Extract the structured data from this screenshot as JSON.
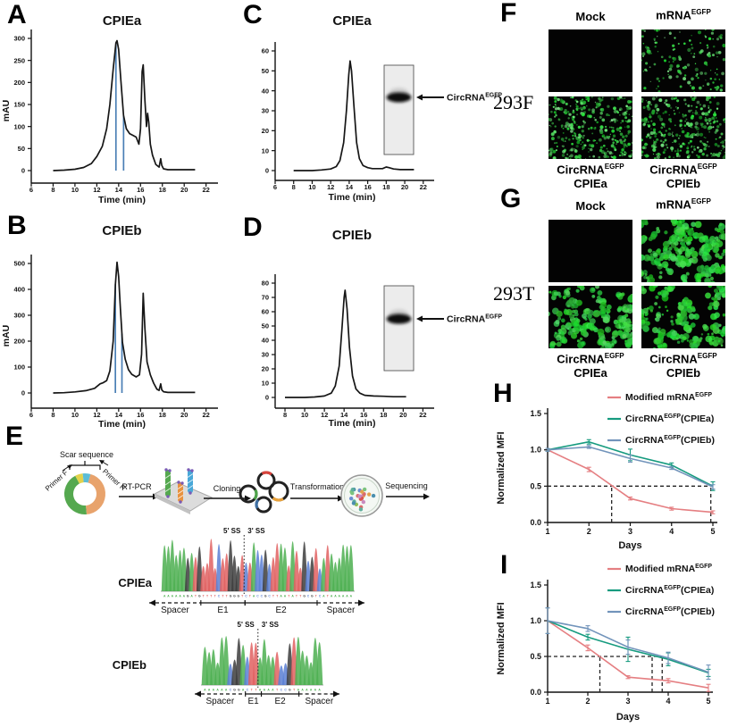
{
  "figure": {
    "letters": {
      "A": "A",
      "B": "B",
      "C": "C",
      "D": "D",
      "E": "E",
      "F": "F",
      "G": "G",
      "H": "H",
      "I": "I"
    }
  },
  "chart_data": [
    {
      "id": "A",
      "type": "line",
      "title": "CPIEa",
      "xlabel": "Time (min)",
      "ylabel": "mAU",
      "xlim": [
        6,
        22.6
      ],
      "xticks": [
        6,
        8,
        10,
        12,
        14,
        16,
        18,
        20,
        22
      ],
      "yticks": [
        0,
        50,
        100,
        150,
        200,
        250,
        300
      ],
      "line_color": "#161616",
      "marker_color": "#4a7fb5",
      "fraction_lines": [
        13.75,
        14.45
      ],
      "points": [
        [
          8,
          0
        ],
        [
          9,
          1
        ],
        [
          10,
          3
        ],
        [
          10.8,
          7
        ],
        [
          11.5,
          16
        ],
        [
          12,
          32
        ],
        [
          12.5,
          55
        ],
        [
          12.9,
          95
        ],
        [
          13.2,
          150
        ],
        [
          13.5,
          230
        ],
        [
          13.75,
          290
        ],
        [
          13.85,
          295
        ],
        [
          14,
          275
        ],
        [
          14.2,
          205
        ],
        [
          14.45,
          125
        ],
        [
          14.7,
          95
        ],
        [
          15,
          84
        ],
        [
          15.3,
          80
        ],
        [
          15.6,
          76
        ],
        [
          15.85,
          60
        ],
        [
          16,
          95
        ],
        [
          16.15,
          225
        ],
        [
          16.25,
          240
        ],
        [
          16.4,
          160
        ],
        [
          16.55,
          100
        ],
        [
          16.65,
          130
        ],
        [
          16.75,
          110
        ],
        [
          16.9,
          60
        ],
        [
          17.1,
          35
        ],
        [
          17.4,
          14
        ],
        [
          17.7,
          8
        ],
        [
          17.85,
          27
        ],
        [
          17.95,
          12
        ],
        [
          18.1,
          4
        ],
        [
          18.5,
          2
        ],
        [
          19,
          2
        ],
        [
          20,
          2
        ],
        [
          21,
          2
        ]
      ]
    },
    {
      "id": "B",
      "type": "line",
      "title": "CPIEb",
      "xlabel": "Time (min)",
      "ylabel": "mAU",
      "xlim": [
        6,
        22.6
      ],
      "xticks": [
        6,
        8,
        10,
        12,
        14,
        16,
        18,
        20,
        22
      ],
      "yticks": [
        0,
        100,
        200,
        300,
        400,
        500
      ],
      "line_color": "#161616",
      "marker_color": "#4a7fb5",
      "fraction_lines": [
        13.7,
        14.3
      ],
      "points": [
        [
          8,
          0
        ],
        [
          9,
          1
        ],
        [
          10,
          4
        ],
        [
          11,
          9
        ],
        [
          11.8,
          18
        ],
        [
          12.3,
          35
        ],
        [
          12.6,
          40
        ],
        [
          12.9,
          48
        ],
        [
          13.2,
          85
        ],
        [
          13.5,
          200
        ],
        [
          13.7,
          420
        ],
        [
          13.85,
          505
        ],
        [
          14,
          450
        ],
        [
          14.15,
          330
        ],
        [
          14.35,
          195
        ],
        [
          14.6,
          130
        ],
        [
          14.9,
          90
        ],
        [
          15.2,
          72
        ],
        [
          15.6,
          62
        ],
        [
          15.9,
          70
        ],
        [
          16.1,
          150
        ],
        [
          16.25,
          385
        ],
        [
          16.4,
          250
        ],
        [
          16.6,
          120
        ],
        [
          16.9,
          70
        ],
        [
          17.2,
          38
        ],
        [
          17.5,
          15
        ],
        [
          17.7,
          10
        ],
        [
          17.85,
          35
        ],
        [
          17.95,
          12
        ],
        [
          18.1,
          5
        ],
        [
          18.5,
          2
        ],
        [
          19,
          2
        ],
        [
          20,
          2
        ],
        [
          21,
          2
        ]
      ]
    },
    {
      "id": "C",
      "type": "line",
      "title": "CPIEa",
      "xlabel": "Time (min)",
      "ylabel": "",
      "xlim": [
        6,
        22.6
      ],
      "xticks": [
        6,
        8,
        10,
        12,
        14,
        16,
        18,
        20,
        22
      ],
      "yticks": [
        0,
        10,
        20,
        30,
        40,
        50,
        60
      ],
      "line_color": "#161616",
      "points": [
        [
          8,
          0
        ],
        [
          9,
          0
        ],
        [
          10,
          0
        ],
        [
          11,
          0.3
        ],
        [
          12,
          0.8
        ],
        [
          12.6,
          2
        ],
        [
          13,
          5
        ],
        [
          13.4,
          14
        ],
        [
          13.7,
          30
        ],
        [
          13.95,
          48
        ],
        [
          14.1,
          55
        ],
        [
          14.25,
          50
        ],
        [
          14.5,
          33
        ],
        [
          14.8,
          14
        ],
        [
          15.1,
          6
        ],
        [
          15.5,
          2.5
        ],
        [
          16,
          1.5
        ],
        [
          16.5,
          1
        ],
        [
          17,
          1
        ],
        [
          17.6,
          1
        ],
        [
          18,
          1.8
        ],
        [
          18.3,
          1.5
        ],
        [
          18.8,
          0.8
        ],
        [
          19.5,
          0.5
        ],
        [
          20.5,
          0.5
        ],
        [
          21,
          0.5
        ]
      ],
      "gel": {
        "band_label": {
          "pre": "CircRNA",
          "sup": "EGFP",
          "post": ""
        }
      }
    },
    {
      "id": "D",
      "type": "line",
      "title": "CPIEb",
      "xlabel": "Time (min)",
      "ylabel": "",
      "xlim": [
        7,
        22.6
      ],
      "xticks": [
        8,
        10,
        12,
        14,
        16,
        18,
        20,
        22
      ],
      "yticks": [
        0,
        10,
        20,
        30,
        40,
        50,
        60,
        70,
        80
      ],
      "line_color": "#161616",
      "points": [
        [
          8,
          0
        ],
        [
          9,
          0
        ],
        [
          10,
          0
        ],
        [
          11,
          0.3
        ],
        [
          12,
          1
        ],
        [
          12.7,
          3
        ],
        [
          13.1,
          8
        ],
        [
          13.5,
          22
        ],
        [
          13.8,
          50
        ],
        [
          14,
          70
        ],
        [
          14.1,
          75
        ],
        [
          14.3,
          62
        ],
        [
          14.55,
          35
        ],
        [
          14.85,
          15
        ],
        [
          15.2,
          6
        ],
        [
          15.6,
          3
        ],
        [
          16.1,
          1.5
        ],
        [
          17,
          1
        ],
        [
          18,
          0.8
        ],
        [
          19,
          0.5
        ],
        [
          20,
          0.5
        ],
        [
          20.3,
          0.5
        ]
      ],
      "gel": {
        "band_label": {
          "pre": "CircRNA",
          "sup": "EGFP",
          "post": ""
        }
      }
    },
    {
      "id": "H",
      "type": "line_series",
      "xlabel": "Days",
      "ylabel": "Normalized MFI",
      "x": [
        1,
        2,
        3,
        4,
        5
      ],
      "yticks": [
        0,
        0.5,
        1,
        1.5
      ],
      "ylim": [
        0,
        1.5
      ],
      "series": [
        {
          "label": {
            "pre": "Modified mRNA",
            "sup": "EGFP",
            "post": ""
          },
          "color": "#e57f82",
          "values": [
            1.0,
            0.73,
            0.33,
            0.19,
            0.14
          ],
          "err": [
            0.02,
            0.03,
            0.02,
            0.02,
            0.02
          ]
        },
        {
          "label": {
            "pre": "CircRNA",
            "sup": "EGFP",
            "post": "(CPIEa)"
          },
          "color": "#169b7f",
          "values": [
            1.0,
            1.11,
            0.93,
            0.79,
            0.5
          ],
          "err": [
            0.02,
            0.03,
            0.08,
            0.03,
            0.06
          ]
        },
        {
          "label": {
            "pre": "CircRNA",
            "sup": "EGFP",
            "post": "(CPIEb)"
          },
          "color": "#7294bb",
          "values": [
            1.0,
            1.04,
            0.88,
            0.75,
            0.49
          ],
          "err": [
            0.02,
            0.02,
            0.05,
            0.02,
            0.03
          ]
        }
      ],
      "guides": {
        "hy": 0.5,
        "hx_end": 5,
        "vx": [
          2.55,
          4.95
        ]
      }
    },
    {
      "id": "I",
      "type": "line_series",
      "xlabel": "Days",
      "ylabel": "Normalized MFI",
      "x": [
        1,
        2,
        3,
        4,
        5
      ],
      "yticks": [
        0,
        0.5,
        1,
        1.5
      ],
      "ylim": [
        0,
        1.5
      ],
      "series": [
        {
          "label": {
            "pre": "Modified mRNA",
            "sup": "EGFP",
            "post": ""
          },
          "color": "#e57f82",
          "values": [
            1.0,
            0.62,
            0.21,
            0.16,
            0.06
          ],
          "err": [
            0.18,
            0.04,
            0.02,
            0.03,
            0.05
          ]
        },
        {
          "label": {
            "pre": "CircRNA",
            "sup": "EGFP",
            "post": "(CPIEa)"
          },
          "color": "#169b7f",
          "values": [
            1.0,
            0.77,
            0.6,
            0.46,
            0.27
          ],
          "err": [
            0.18,
            0.04,
            0.17,
            0.09,
            0.05
          ]
        },
        {
          "label": {
            "pre": "CircRNA",
            "sup": "EGFP",
            "post": "(CPIEb)"
          },
          "color": "#7294bb",
          "values": [
            1.0,
            0.89,
            0.63,
            0.48,
            0.28
          ],
          "err": [
            0.18,
            0.04,
            0.1,
            0.08,
            0.1
          ]
        }
      ],
      "guides": {
        "hy": 0.5,
        "hx_end": 3.85,
        "vx": [
          2.3,
          3.6,
          3.85
        ]
      }
    }
  ],
  "workflow": {
    "scar_label": "Scar sequence",
    "primer_f": "Primer F",
    "primer_r": "Primer R",
    "steps": [
      "RT-PCR",
      "Cloning",
      "Transformation",
      "Sequencing"
    ],
    "plasmid_colors": {
      "green": "#55a84f",
      "orange": "#e8a36c",
      "yellow": "#e3d24b",
      "cyan": "#5bbcd6"
    },
    "clone_arc_colors": [
      "#d9453d",
      "#4ea44a",
      "#e9a23b",
      "#3e6fa3"
    ],
    "colony_colors": [
      "#d96b6b",
      "#7cc47f",
      "#4a8fae",
      "#e2a14e",
      "#5fae9b",
      "#c98bc0",
      "#8fbf5a",
      "#d9534f",
      "#6b8fd4"
    ]
  },
  "traces": [
    {
      "name": "CPIEa",
      "ss5": "5' SS",
      "ss3": "3' SS",
      "sequence": "AAAAAAGATGTTTTCTTGGGTCTACCGCTTAATATTGCGTCATAAAAAA",
      "junction_index": 21,
      "regions": [
        {
          "label": "Spacer",
          "dashed": true,
          "frac": [
            0,
            0.24
          ]
        },
        {
          "label": "E1",
          "dashed": false,
          "frac": [
            0.24,
            0.445
          ]
        },
        {
          "label": "E2",
          "dashed": false,
          "frac": [
            0.445,
            0.78
          ]
        },
        {
          "label": "Spacer",
          "dashed": true,
          "frac": [
            0.78,
            1
          ]
        }
      ]
    },
    {
      "name": "CPIEb",
      "ss5": "5' SS",
      "ss3": "3' SS",
      "sequence": "AAAAAACGGACTTAAAATCCGTAAAAAA",
      "junction_index": 13,
      "regions": [
        {
          "label": "Spacer",
          "dashed": true,
          "frac": [
            0,
            0.35
          ]
        },
        {
          "label": "E1",
          "dashed": false,
          "frac": [
            0.35,
            0.46
          ]
        },
        {
          "label": "E2",
          "dashed": false,
          "frac": [
            0.46,
            0.72
          ]
        },
        {
          "label": "Spacer",
          "dashed": true,
          "frac": [
            0.72,
            1
          ]
        }
      ]
    }
  ],
  "base_colors": {
    "A": "#4caf50",
    "C": "#5b7fd4",
    "G": "#3d3d3d",
    "T": "#e06060"
  },
  "microscopy": {
    "F": {
      "cell_line": "293F",
      "col_labels": [
        {
          "pre": "Mock",
          "sup": ""
        },
        {
          "pre": "mRNA",
          "sup": "EGFP"
        }
      ],
      "row_labels": [
        {
          "pre": "CircRNA",
          "sup": "EGFP",
          "line2": "CPIEa"
        },
        {
          "pre": "CircRNA",
          "sup": "EGFP",
          "line2": "CPIEb"
        }
      ],
      "images": [
        {
          "style": "blank",
          "count": 0,
          "seed": 11
        },
        {
          "style": "dots",
          "count": 150,
          "seed": 22
        },
        {
          "style": "dots",
          "count": 340,
          "seed": 33
        },
        {
          "style": "dots",
          "count": 320,
          "seed": 44
        }
      ]
    },
    "G": {
      "cell_line": "293T",
      "col_labels": [
        {
          "pre": "Mock",
          "sup": ""
        },
        {
          "pre": "mRNA",
          "sup": "EGFP"
        }
      ],
      "row_labels": [
        {
          "pre": "CircRNA",
          "sup": "EGFP",
          "line2": "CPIEa"
        },
        {
          "pre": "CircRNA",
          "sup": "EGFP",
          "line2": "CPIEb"
        }
      ],
      "images": [
        {
          "style": "blank",
          "count": 0,
          "seed": 55
        },
        {
          "style": "patches",
          "count": 72,
          "seed": 66
        },
        {
          "style": "patches",
          "count": 64,
          "seed": 77
        },
        {
          "style": "patches",
          "count": 56,
          "seed": 88
        }
      ]
    }
  }
}
